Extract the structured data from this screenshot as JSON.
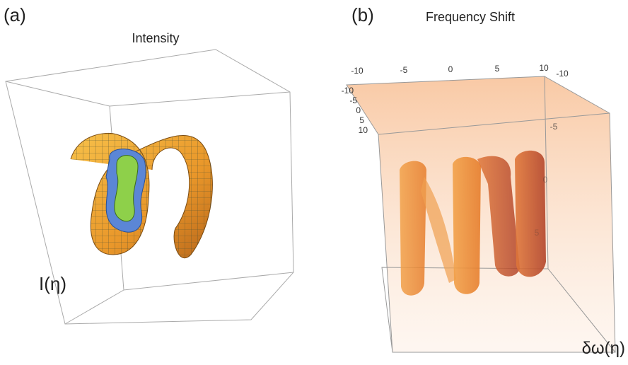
{
  "panels": [
    {
      "label": "(a)",
      "title": "Intensity",
      "axis_label": "I(η)"
    },
    {
      "label": "(b)",
      "title": "Frequency Shift",
      "axis_label": "δω(η)",
      "top_ticks": [
        "-10",
        "-5",
        "0",
        "5",
        "10"
      ],
      "left_ticks": [
        "-10",
        "-5",
        "0",
        "5",
        "10"
      ],
      "right_ticks": [
        "-10",
        "-5",
        "0",
        "5"
      ]
    }
  ]
}
